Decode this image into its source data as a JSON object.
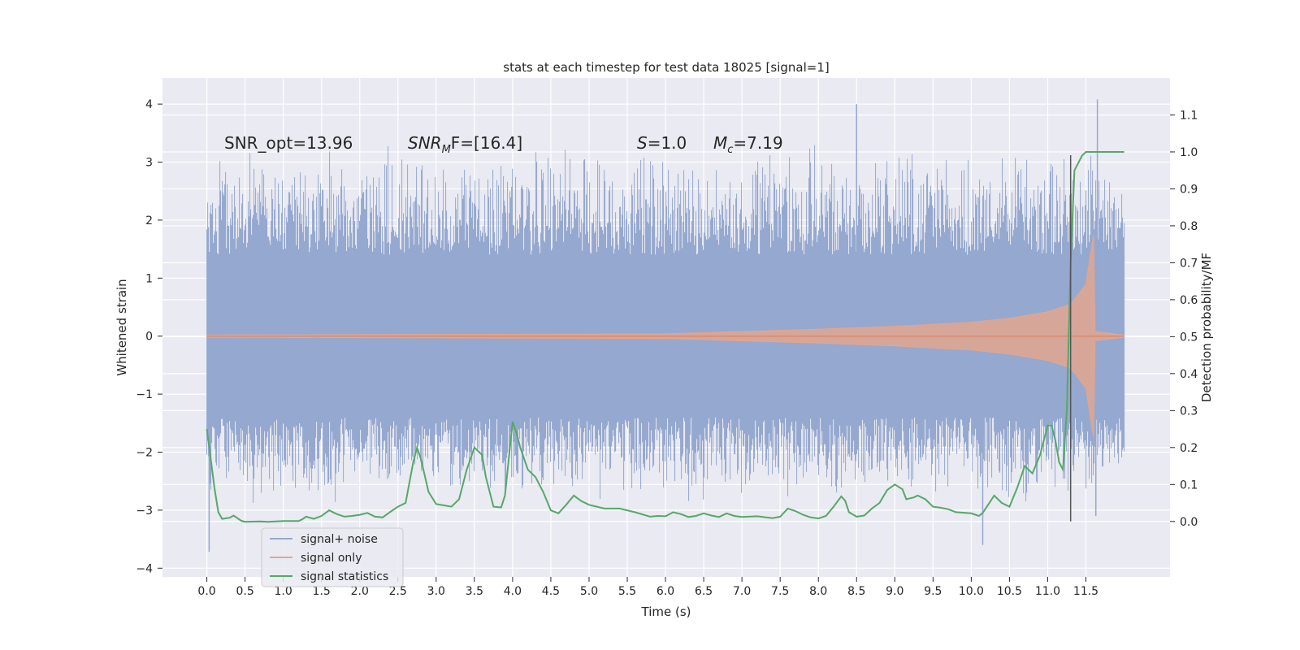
{
  "chart_data": {
    "type": "line",
    "title": "stats at each timestep for test data 18025 [signal=1]",
    "xlabel": "Time (s)",
    "ylabel": "Whitened strain",
    "y2label": "Detection probability/MF",
    "xlim": [
      -0.58,
      12.6
    ],
    "ylim": [
      -4.15,
      4.45
    ],
    "y2lim": [
      -0.15,
      1.2
    ],
    "x_ticks": [
      0.0,
      0.5,
      1.0,
      1.5,
      2.0,
      2.5,
      3.0,
      3.5,
      4.0,
      4.5,
      5.0,
      5.5,
      6.0,
      6.5,
      7.0,
      7.5,
      8.0,
      8.5,
      9.0,
      9.5,
      10.0,
      10.5,
      11.0,
      11.5
    ],
    "x_tick_labels": [
      "0.0",
      "0.5",
      "1.0",
      "1.5",
      "2.0",
      "2.5",
      "3.0",
      "3.5",
      "4.0",
      "4.5",
      "5.0",
      "5.5",
      "6.0",
      "6.5",
      "7.0",
      "7.5",
      "8.0",
      "8.5",
      "9.0",
      "9.5",
      "10.0",
      "10.5",
      "11.0",
      "11.5"
    ],
    "y_ticks": [
      -4,
      -3,
      -2,
      -1,
      0,
      1,
      2,
      3,
      4
    ],
    "y_tick_labels": [
      "−4",
      "−3",
      "−2",
      "−1",
      "0",
      "1",
      "2",
      "3",
      "4"
    ],
    "y2_ticks": [
      0.0,
      0.1,
      0.2,
      0.3,
      0.4,
      0.5,
      0.6,
      0.7,
      0.8,
      0.9,
      1.0,
      1.1
    ],
    "y2_tick_labels": [
      "0.0",
      "0.1",
      "0.2",
      "0.3",
      "0.4",
      "0.5",
      "0.6",
      "0.7",
      "0.8",
      "0.9",
      "1.0",
      "1.1"
    ],
    "grid": true,
    "legend_position": "lower-left",
    "annotations": {
      "snr_opt": "SNR_opt=13.96",
      "snr_mf_sym": "SNR",
      "snr_mf_sub": "M",
      "snr_mf_rest": "F=[16.4]",
      "s_sym": "S",
      "s_rest": "=1.0",
      "mc_sym": "M",
      "mc_sub": "c",
      "mc_rest": "=7.19"
    },
    "vertical_marker_x": 11.3,
    "series": [
      {
        "name": "signal+ noise",
        "color": "#95a8cf",
        "style": "dense-noise",
        "x_range": [
          0.0,
          12.0
        ],
        "band_core": 1.4,
        "typical_peak_range": [
          -2.9,
          3.4
        ],
        "extremes": [
          {
            "x": 0.03,
            "y": -3.72
          },
          {
            "x": 8.5,
            "y": 4.0
          },
          {
            "x": 10.15,
            "y": -3.6
          },
          {
            "x": 11.65,
            "y": 4.08
          },
          {
            "x": 11.63,
            "y": -3.1
          }
        ]
      },
      {
        "name": "signal only",
        "color": "#e2a68e",
        "style": "chirp",
        "x_range": [
          0.0,
          12.0
        ],
        "amplitude": [
          {
            "x": 0.0,
            "y": 0.02
          },
          {
            "x": 6.0,
            "y": 0.04
          },
          {
            "x": 8.0,
            "y": 0.12
          },
          {
            "x": 9.0,
            "y": 0.17
          },
          {
            "x": 10.0,
            "y": 0.24
          },
          {
            "x": 10.5,
            "y": 0.31
          },
          {
            "x": 11.0,
            "y": 0.42
          },
          {
            "x": 11.3,
            "y": 0.55
          },
          {
            "x": 11.5,
            "y": 0.9
          },
          {
            "x": 11.6,
            "y": 1.75
          },
          {
            "x": 11.62,
            "y": 0.08
          },
          {
            "x": 12.0,
            "y": 0.02
          }
        ]
      },
      {
        "name": "signal statistics",
        "color": "#55a868",
        "style": "line",
        "axis": "right",
        "points": [
          [
            0.0,
            0.25
          ],
          [
            0.05,
            0.17
          ],
          [
            0.1,
            0.09
          ],
          [
            0.15,
            0.025
          ],
          [
            0.2,
            0.007
          ],
          [
            0.3,
            0.01
          ],
          [
            0.35,
            0.016
          ],
          [
            0.45,
            0.002
          ],
          [
            0.5,
            -0.001
          ],
          [
            0.7,
            0.0
          ],
          [
            0.8,
            -0.001
          ],
          [
            1.0,
            0.001
          ],
          [
            1.2,
            0.001
          ],
          [
            1.25,
            0.006
          ],
          [
            1.3,
            0.013
          ],
          [
            1.4,
            0.007
          ],
          [
            1.5,
            0.015
          ],
          [
            1.6,
            0.03
          ],
          [
            1.7,
            0.02
          ],
          [
            1.8,
            0.013
          ],
          [
            1.9,
            0.015
          ],
          [
            2.0,
            0.018
          ],
          [
            2.1,
            0.023
          ],
          [
            2.2,
            0.013
          ],
          [
            2.3,
            0.011
          ],
          [
            2.4,
            0.026
          ],
          [
            2.5,
            0.04
          ],
          [
            2.6,
            0.05
          ],
          [
            2.7,
            0.16
          ],
          [
            2.75,
            0.2
          ],
          [
            2.8,
            0.17
          ],
          [
            2.9,
            0.08
          ],
          [
            3.0,
            0.047
          ],
          [
            3.2,
            0.04
          ],
          [
            3.3,
            0.06
          ],
          [
            3.4,
            0.14
          ],
          [
            3.5,
            0.2
          ],
          [
            3.6,
            0.18
          ],
          [
            3.65,
            0.12
          ],
          [
            3.75,
            0.04
          ],
          [
            3.85,
            0.038
          ],
          [
            3.9,
            0.07
          ],
          [
            4.0,
            0.27
          ],
          [
            4.05,
            0.24
          ],
          [
            4.1,
            0.2
          ],
          [
            4.2,
            0.14
          ],
          [
            4.3,
            0.12
          ],
          [
            4.4,
            0.08
          ],
          [
            4.5,
            0.03
          ],
          [
            4.6,
            0.022
          ],
          [
            4.7,
            0.045
          ],
          [
            4.8,
            0.07
          ],
          [
            4.9,
            0.055
          ],
          [
            5.0,
            0.045
          ],
          [
            5.2,
            0.035
          ],
          [
            5.4,
            0.035
          ],
          [
            5.6,
            0.025
          ],
          [
            5.8,
            0.013
          ],
          [
            5.9,
            0.015
          ],
          [
            6.0,
            0.014
          ],
          [
            6.1,
            0.025
          ],
          [
            6.2,
            0.02
          ],
          [
            6.3,
            0.012
          ],
          [
            6.4,
            0.015
          ],
          [
            6.5,
            0.022
          ],
          [
            6.6,
            0.016
          ],
          [
            6.7,
            0.012
          ],
          [
            6.8,
            0.022
          ],
          [
            6.9,
            0.015
          ],
          [
            7.0,
            0.012
          ],
          [
            7.2,
            0.014
          ],
          [
            7.4,
            0.009
          ],
          [
            7.5,
            0.013
          ],
          [
            7.6,
            0.035
          ],
          [
            7.7,
            0.028
          ],
          [
            7.8,
            0.018
          ],
          [
            7.9,
            0.011
          ],
          [
            8.0,
            0.008
          ],
          [
            8.1,
            0.015
          ],
          [
            8.2,
            0.04
          ],
          [
            8.3,
            0.068
          ],
          [
            8.35,
            0.056
          ],
          [
            8.4,
            0.025
          ],
          [
            8.5,
            0.013
          ],
          [
            8.6,
            0.016
          ],
          [
            8.7,
            0.035
          ],
          [
            8.8,
            0.05
          ],
          [
            8.9,
            0.085
          ],
          [
            9.0,
            0.1
          ],
          [
            9.1,
            0.087
          ],
          [
            9.15,
            0.06
          ],
          [
            9.25,
            0.065
          ],
          [
            9.3,
            0.07
          ],
          [
            9.4,
            0.06
          ],
          [
            9.5,
            0.04
          ],
          [
            9.6,
            0.037
          ],
          [
            9.7,
            0.033
          ],
          [
            9.8,
            0.025
          ],
          [
            10.0,
            0.022
          ],
          [
            10.1,
            0.015
          ],
          [
            10.15,
            0.023
          ],
          [
            10.3,
            0.07
          ],
          [
            10.4,
            0.05
          ],
          [
            10.5,
            0.04
          ],
          [
            10.6,
            0.09
          ],
          [
            10.7,
            0.15
          ],
          [
            10.8,
            0.13
          ],
          [
            10.9,
            0.18
          ],
          [
            11.0,
            0.26
          ],
          [
            11.05,
            0.26
          ],
          [
            11.1,
            0.22
          ],
          [
            11.15,
            0.16
          ],
          [
            11.2,
            0.14
          ],
          [
            11.25,
            0.3
          ],
          [
            11.3,
            0.7
          ],
          [
            11.35,
            0.95
          ],
          [
            11.45,
            0.99
          ],
          [
            11.5,
            1.0
          ],
          [
            11.9,
            1.0
          ],
          [
            12.0,
            1.0
          ]
        ]
      }
    ]
  },
  "legend": {
    "items": [
      {
        "label": "signal+ noise",
        "color": "#95a8cf"
      },
      {
        "label": "signal only",
        "color": "#e2a68e"
      },
      {
        "label": "signal statistics",
        "color": "#55a868"
      }
    ]
  }
}
